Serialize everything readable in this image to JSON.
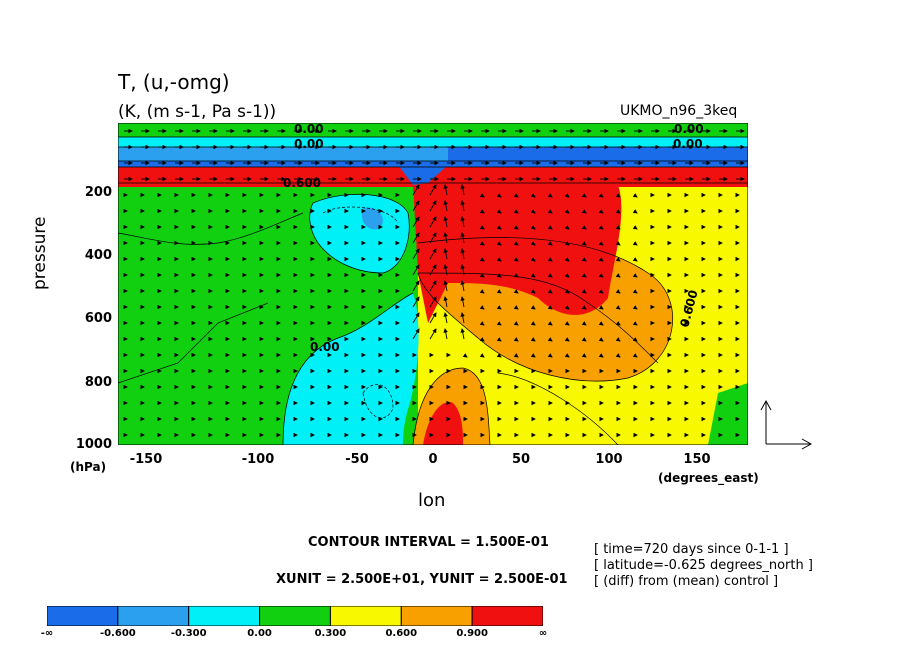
{
  "header": {
    "title": "T, (u,-omg)",
    "subtitle": "(K, (m s-1, Pa s-1))",
    "dataset": "UKMO_n96_3keq"
  },
  "axes": {
    "ylabel": "pressure",
    "yunit": "(hPa)",
    "xlabel": "lon",
    "xunit": "(degrees_east)",
    "yticks": [
      "200",
      "400",
      "600",
      "800",
      "1000"
    ],
    "xticks": [
      "-150",
      "-100",
      "-50",
      "0",
      "50",
      "100",
      "150"
    ]
  },
  "footer": {
    "contour_interval": "CONTOUR INTERVAL = 1.500E-01",
    "units_line": "XUNIT = 2.500E+01, YUNIT = 2.500E-01",
    "time": "[ time=720 days since 0-1-1 ]",
    "latitude": "[ latitude=-0.625 degrees_north ]",
    "diff": "[ (diff) from (mean) control ]"
  },
  "colorbar": {
    "labels": [
      "-∞",
      "-0.600",
      "-0.300",
      "0.00",
      "0.300",
      "0.600",
      "0.900",
      "∞"
    ],
    "colors": [
      "#1b6ce8",
      "#2aa0ee",
      "#00f0f8",
      "#10d010",
      "#f8f800",
      "#f8a000",
      "#f01010"
    ]
  },
  "contour_labels": [
    "0.00",
    "0.00",
    "0.00",
    "0.600",
    "0.600",
    "0.00",
    "0.00"
  ],
  "chart_data": {
    "type": "heatmap",
    "title": "T, (u,-omg)",
    "subtitle": "(K, (m s-1, Pa s-1))",
    "xlabel": "lon",
    "ylabel": "pressure",
    "xlim": [
      -180,
      180
    ],
    "ylim": [
      1000,
      0
    ],
    "x_ticks": [
      -150,
      -100,
      -50,
      0,
      50,
      100,
      150
    ],
    "y_ticks": [
      200,
      400,
      600,
      800,
      1000
    ],
    "levels": [
      -0.6,
      -0.3,
      0.0,
      0.3,
      0.6,
      0.9
    ],
    "contour_interval": 0.15,
    "regions": [
      {
        "label": "green (0.00–0.300)",
        "x_range": [
          -180,
          -20
        ],
        "p_range": [
          200,
          1000
        ]
      },
      {
        "label": "cyan (-0.300–0.00)",
        "x_range": [
          -85,
          -10
        ],
        "p_range": [
          560,
          1000
        ]
      },
      {
        "label": "cyan (-0.300–0.00)",
        "x_range": [
          -70,
          -30
        ],
        "p_range": [
          210,
          380
        ]
      },
      {
        "label": "red (> 0.900)",
        "x_range": [
          -10,
          100
        ],
        "p_range": [
          190,
          600
        ]
      },
      {
        "label": "orange (0.600–0.900)",
        "x_range": [
          20,
          140
        ],
        "p_range": [
          300,
          700
        ]
      },
      {
        "label": "yellow (0.300–0.600)",
        "x_range": [
          0,
          180
        ],
        "p_range": [
          220,
          1000
        ]
      },
      {
        "label": "red (> 0.900)",
        "x_range": [
          -5,
          10
        ],
        "p_range": [
          900,
          1000
        ]
      },
      {
        "label": "blue bands (< -0.300)",
        "x_range": [
          -180,
          180
        ],
        "p_range": [
          0,
          140
        ]
      },
      {
        "label": "red band (> 0.900)",
        "x_range": [
          -180,
          180
        ],
        "p_range": [
          140,
          180
        ]
      }
    ],
    "vector_reference": {
      "xunit": 25.0,
      "yunit": 0.25
    },
    "grid": false
  }
}
